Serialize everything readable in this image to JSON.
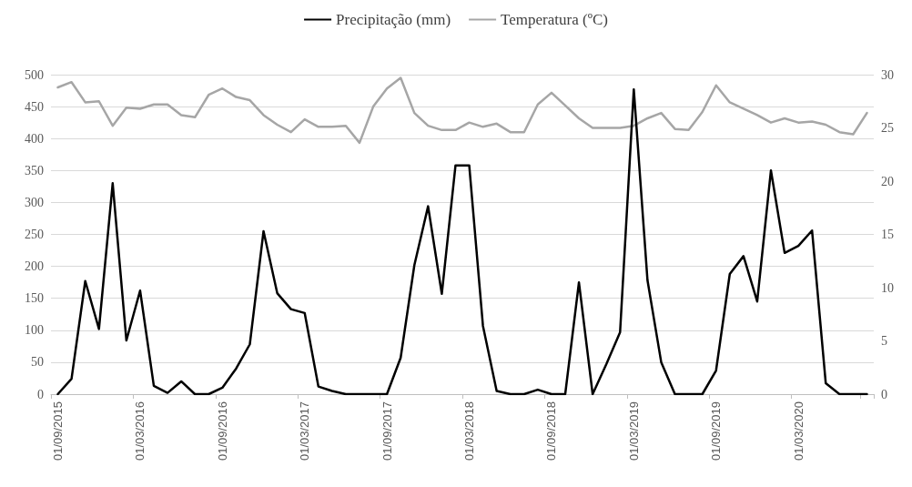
{
  "chart_data": {
    "type": "line",
    "legend": "top",
    "grid": "y",
    "marker": "none",
    "line_style": "solid",
    "categories": [
      "01/09/2015",
      null,
      null,
      null,
      null,
      null,
      "01/03/2016",
      null,
      null,
      null,
      null,
      null,
      "01/09/2016",
      null,
      null,
      null,
      null,
      null,
      "01/03/2017",
      null,
      null,
      null,
      null,
      null,
      "01/09/2017",
      null,
      null,
      null,
      null,
      null,
      "01/03/2018",
      null,
      null,
      null,
      null,
      null,
      "01/09/2018",
      null,
      null,
      null,
      null,
      null,
      "01/03/2019",
      null,
      null,
      null,
      null,
      null,
      "01/09/2019",
      null,
      null,
      null,
      null,
      null,
      "01/03/2020",
      null,
      null,
      null,
      null,
      null
    ],
    "series": [
      {
        "name": "Precipitação (mm)",
        "color": "#000000",
        "values": [
          0,
          24,
          177,
          102,
          330,
          84,
          162,
          13,
          2,
          20,
          0,
          0,
          10,
          40,
          78,
          255,
          158,
          133,
          127,
          12,
          5,
          0,
          0,
          0,
          0,
          57,
          202,
          294,
          157,
          358,
          358,
          107,
          5,
          0,
          0,
          7,
          0,
          0,
          175,
          0,
          47,
          97,
          477,
          178,
          50,
          0,
          0,
          0,
          37,
          188,
          216,
          145,
          350,
          221,
          232,
          256,
          17,
          0,
          0,
          0
        ]
      },
      {
        "name": "Temperatura (ºC)",
        "color": "#a6a6a6",
        "axis": "y2",
        "values": [
          28.8,
          29.3,
          27.4,
          27.5,
          25.2,
          26.9,
          26.8,
          27.2,
          27.2,
          26.2,
          26.0,
          28.1,
          28.7,
          27.9,
          27.6,
          26.2,
          25.3,
          24.6,
          25.8,
          25.1,
          25.1,
          25.2,
          23.6,
          27.0,
          28.7,
          29.7,
          26.4,
          25.2,
          24.8,
          24.8,
          25.5,
          25.1,
          25.4,
          24.6,
          24.6,
          27.2,
          28.3,
          27.1,
          25.9,
          25.0,
          25.0,
          25.0,
          25.2,
          25.9,
          26.4,
          24.9,
          24.8,
          26.5,
          29.0,
          27.4,
          26.8,
          26.2,
          25.5,
          25.9,
          25.5,
          25.6,
          25.3,
          24.6,
          24.4,
          26.4
        ]
      }
    ],
    "ylim": [
      0,
      500
    ],
    "yticks": [
      0,
      50,
      100,
      150,
      200,
      250,
      300,
      350,
      400,
      450,
      500
    ],
    "y2lim": [
      0,
      30
    ],
    "y2ticks": [
      0,
      5,
      10,
      15,
      20,
      25,
      30
    ]
  }
}
